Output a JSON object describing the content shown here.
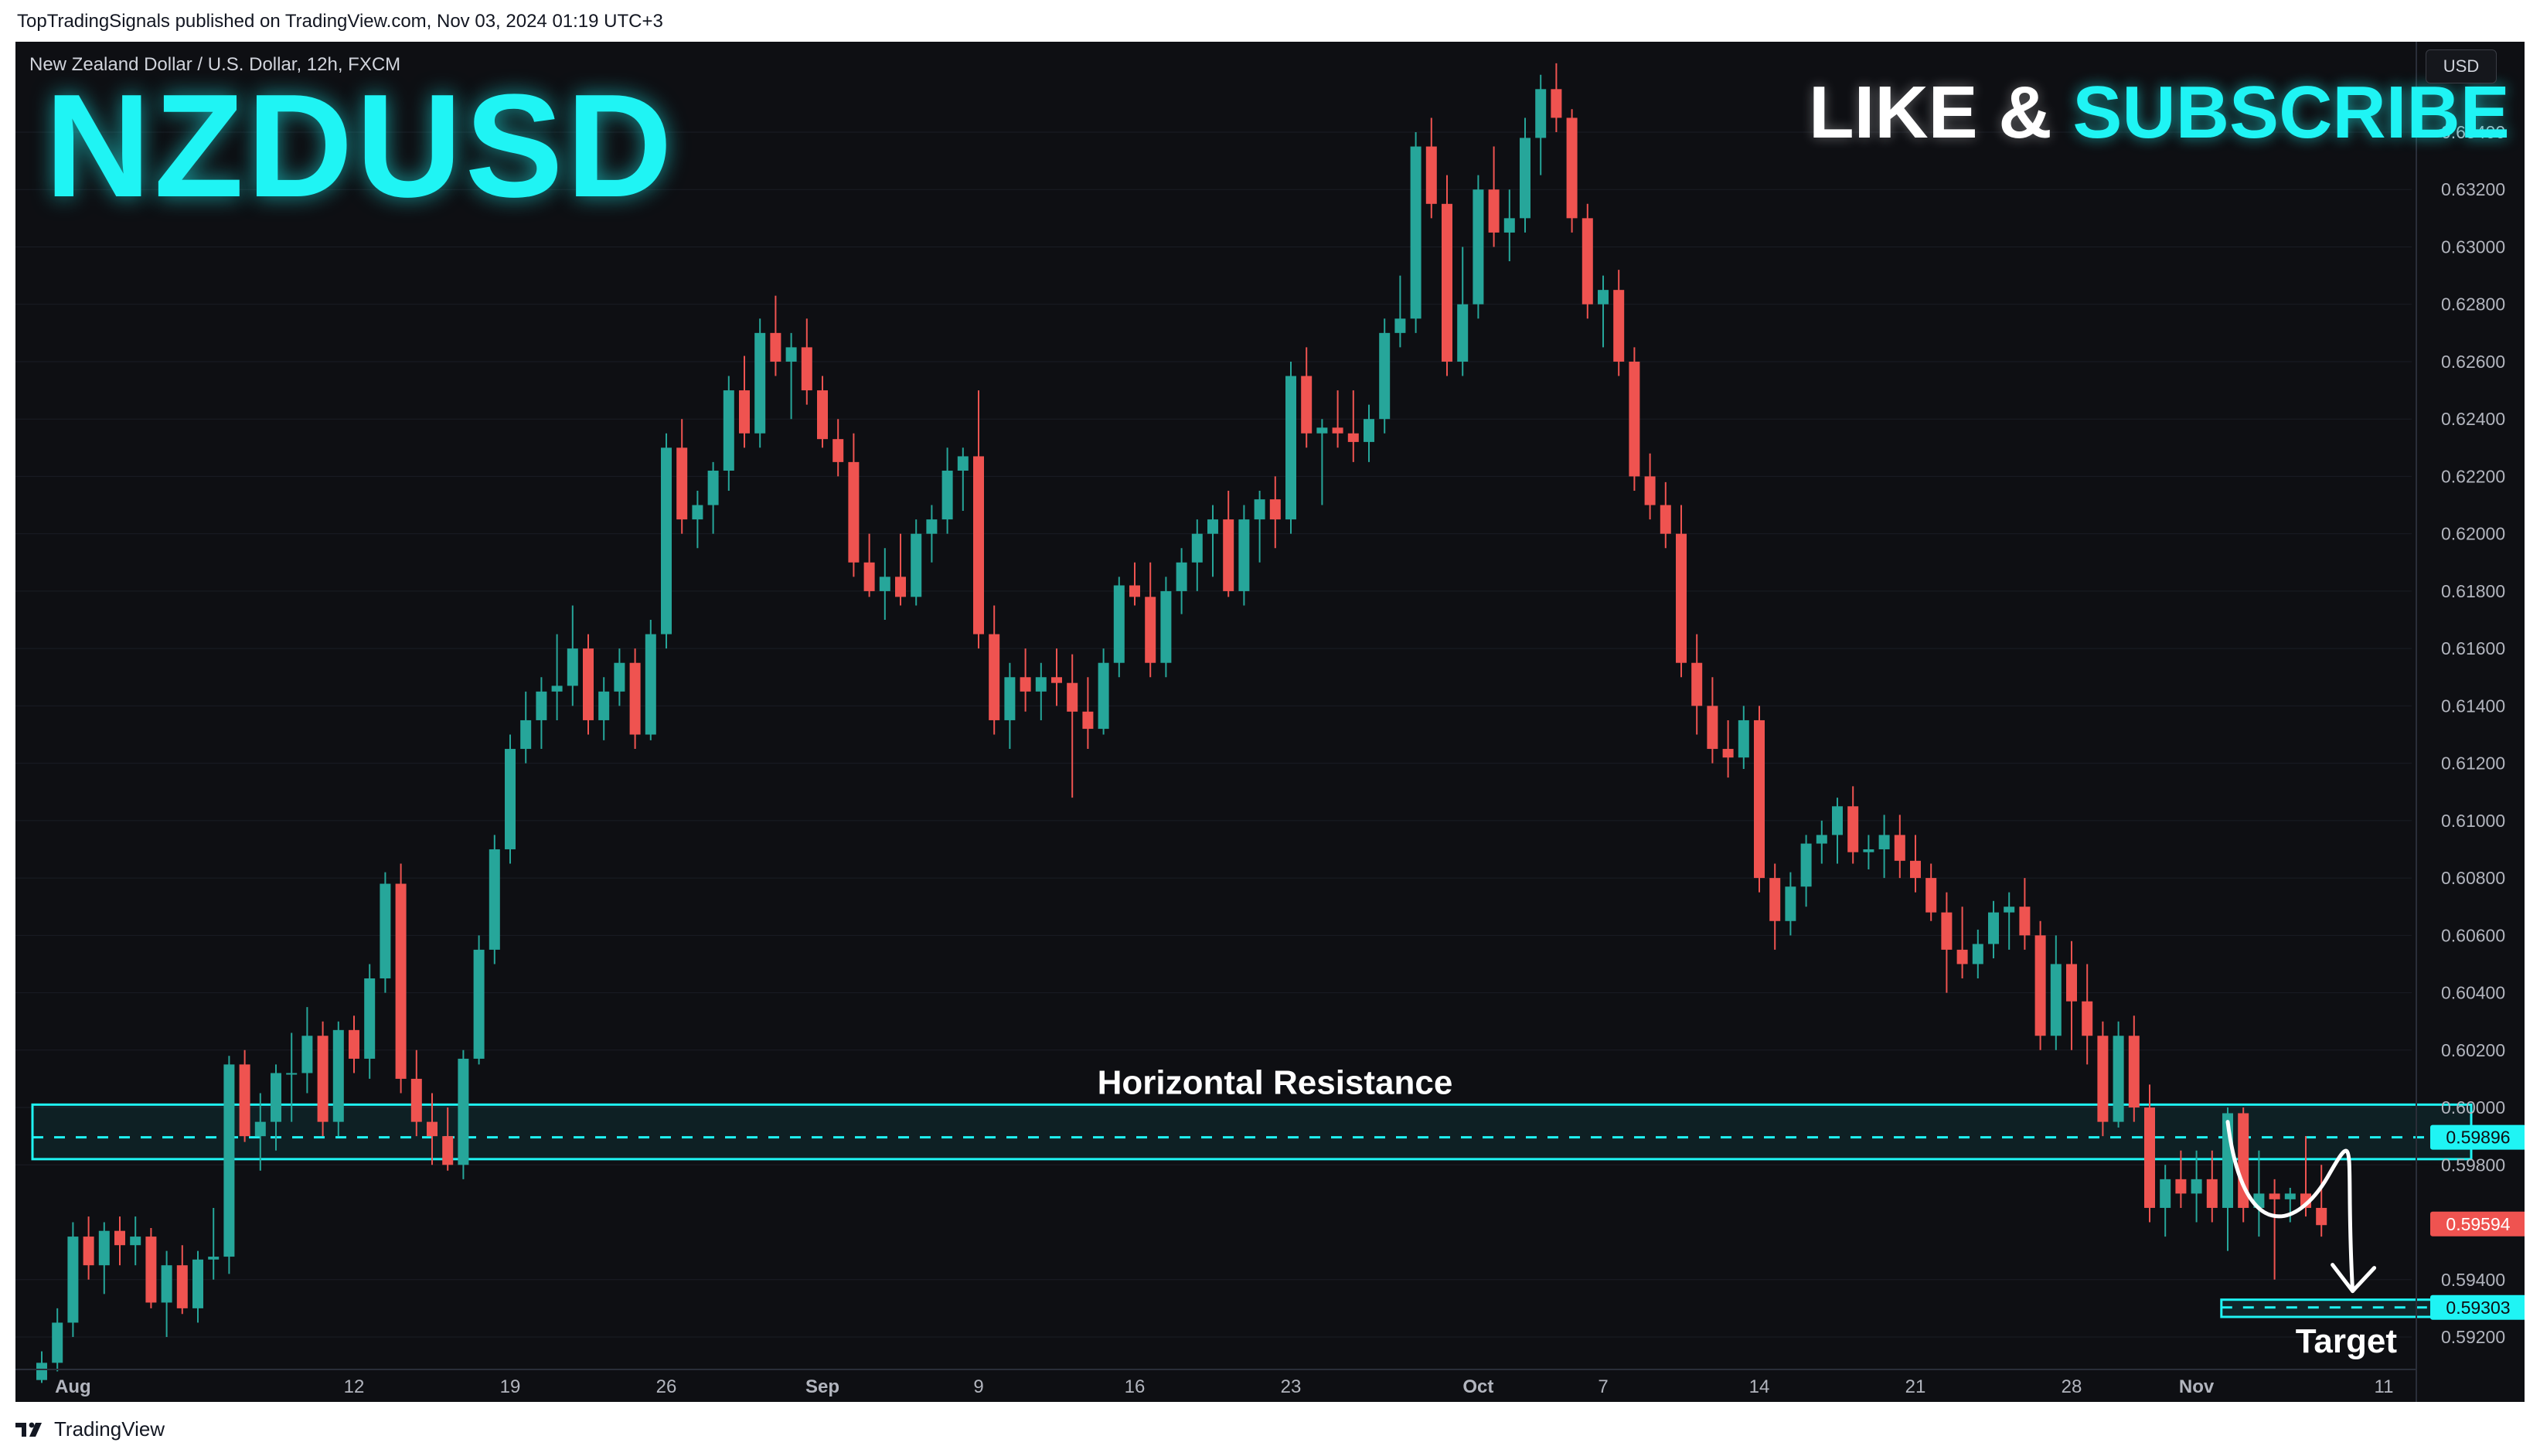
{
  "publish_header": "TopTradingSignals published on TradingView.com, Nov 03, 2024 01:19 UTC+3",
  "chart_header": "New Zealand Dollar / U.S. Dollar, 12h, FXCM",
  "symbol_title": "NZDUSD",
  "promo": {
    "like": "LIKE & ",
    "subscribe": "SUBSCRIBE"
  },
  "currency_button": "USD",
  "footer_brand": "TradingView",
  "colors": {
    "bull": "#26a69a",
    "bear": "#ef5350",
    "accent": "#1ff4f4",
    "background": "#0e0f13"
  },
  "chart_data": {
    "type": "candlestick",
    "interval": "12h",
    "ylim": [
      0.591,
      0.6364
    ],
    "y_ticks": [
      "0.63400",
      "0.63200",
      "0.63000",
      "0.62800",
      "0.62600",
      "0.62400",
      "0.62200",
      "0.62000",
      "0.61800",
      "0.61600",
      "0.61400",
      "0.61200",
      "0.61000",
      "0.60800",
      "0.60600",
      "0.60400",
      "0.60200",
      "0.60000",
      "0.59800",
      "0.59400",
      "0.59200"
    ],
    "x_ticks": [
      {
        "label": "Aug",
        "bar": 2,
        "bold": true
      },
      {
        "label": "12",
        "bar": 20,
        "bold": false
      },
      {
        "label": "19",
        "bar": 30,
        "bold": false
      },
      {
        "label": "26",
        "bar": 40,
        "bold": false
      },
      {
        "label": "Sep",
        "bar": 50,
        "bold": true
      },
      {
        "label": "9",
        "bar": 60,
        "bold": false
      },
      {
        "label": "16",
        "bar": 70,
        "bold": false
      },
      {
        "label": "23",
        "bar": 80,
        "bold": false
      },
      {
        "label": "Oct",
        "bar": 92,
        "bold": true
      },
      {
        "label": "7",
        "bar": 100,
        "bold": false
      },
      {
        "label": "14",
        "bar": 110,
        "bold": false
      },
      {
        "label": "21",
        "bar": 120,
        "bold": false
      },
      {
        "label": "28",
        "bar": 130,
        "bold": false
      },
      {
        "label": "Nov",
        "bar": 138,
        "bold": true
      },
      {
        "label": "11",
        "bar": 150,
        "bold": false
      }
    ],
    "candles": [
      [
        0.5905,
        0.5915,
        0.5904,
        0.5911
      ],
      [
        0.5911,
        0.593,
        0.5908,
        0.5925
      ],
      [
        0.5925,
        0.596,
        0.592,
        0.5955
      ],
      [
        0.5955,
        0.5962,
        0.594,
        0.5945
      ],
      [
        0.5945,
        0.596,
        0.5935,
        0.5957
      ],
      [
        0.5957,
        0.5962,
        0.5945,
        0.5952
      ],
      [
        0.5952,
        0.5962,
        0.5945,
        0.5955
      ],
      [
        0.5955,
        0.5958,
        0.593,
        0.5932
      ],
      [
        0.5932,
        0.595,
        0.592,
        0.5945
      ],
      [
        0.5945,
        0.5952,
        0.5928,
        0.593
      ],
      [
        0.593,
        0.595,
        0.5925,
        0.5947
      ],
      [
        0.5947,
        0.5965,
        0.594,
        0.5948
      ],
      [
        0.5948,
        0.6018,
        0.5942,
        0.6015
      ],
      [
        0.6015,
        0.602,
        0.5988,
        0.599
      ],
      [
        0.599,
        0.6005,
        0.5978,
        0.5995
      ],
      [
        0.5995,
        0.6015,
        0.5985,
        0.6012
      ],
      [
        0.6012,
        0.6026,
        0.5995,
        0.6012
      ],
      [
        0.6012,
        0.6035,
        0.6005,
        0.6025
      ],
      [
        0.6025,
        0.603,
        0.599,
        0.5995
      ],
      [
        0.5995,
        0.603,
        0.599,
        0.6027
      ],
      [
        0.6027,
        0.6032,
        0.6012,
        0.6017
      ],
      [
        0.6017,
        0.605,
        0.601,
        0.6045
      ],
      [
        0.6045,
        0.6082,
        0.604,
        0.6078
      ],
      [
        0.6078,
        0.6085,
        0.6005,
        0.601
      ],
      [
        0.601,
        0.602,
        0.599,
        0.5995
      ],
      [
        0.5995,
        0.6005,
        0.598,
        0.599
      ],
      [
        0.599,
        0.6,
        0.5978,
        0.598
      ],
      [
        0.598,
        0.602,
        0.5975,
        0.6017
      ],
      [
        0.6017,
        0.606,
        0.6015,
        0.6055
      ],
      [
        0.6055,
        0.6095,
        0.605,
        0.609
      ],
      [
        0.609,
        0.613,
        0.6085,
        0.6125
      ],
      [
        0.6125,
        0.6145,
        0.612,
        0.6135
      ],
      [
        0.6135,
        0.615,
        0.6125,
        0.6145
      ],
      [
        0.6145,
        0.6165,
        0.6135,
        0.6147
      ],
      [
        0.6147,
        0.6175,
        0.614,
        0.616
      ],
      [
        0.616,
        0.6165,
        0.613,
        0.6135
      ],
      [
        0.6135,
        0.615,
        0.6128,
        0.6145
      ],
      [
        0.6145,
        0.616,
        0.614,
        0.6155
      ],
      [
        0.6155,
        0.616,
        0.6125,
        0.613
      ],
      [
        0.613,
        0.617,
        0.6128,
        0.6165
      ],
      [
        0.6165,
        0.6235,
        0.616,
        0.623
      ],
      [
        0.623,
        0.624,
        0.62,
        0.6205
      ],
      [
        0.6205,
        0.6215,
        0.6195,
        0.621
      ],
      [
        0.621,
        0.6225,
        0.62,
        0.6222
      ],
      [
        0.6222,
        0.6255,
        0.6215,
        0.625
      ],
      [
        0.625,
        0.6262,
        0.623,
        0.6235
      ],
      [
        0.6235,
        0.6275,
        0.623,
        0.627
      ],
      [
        0.627,
        0.6283,
        0.6255,
        0.626
      ],
      [
        0.626,
        0.627,
        0.624,
        0.6265
      ],
      [
        0.6265,
        0.6275,
        0.6245,
        0.625
      ],
      [
        0.625,
        0.6255,
        0.623,
        0.6233
      ],
      [
        0.6233,
        0.624,
        0.622,
        0.6225
      ],
      [
        0.6225,
        0.6235,
        0.6185,
        0.619
      ],
      [
        0.619,
        0.62,
        0.6178,
        0.618
      ],
      [
        0.618,
        0.6195,
        0.617,
        0.6185
      ],
      [
        0.6185,
        0.62,
        0.6175,
        0.6178
      ],
      [
        0.6178,
        0.6205,
        0.6175,
        0.62
      ],
      [
        0.62,
        0.621,
        0.619,
        0.6205
      ],
      [
        0.6205,
        0.623,
        0.62,
        0.6222
      ],
      [
        0.6222,
        0.623,
        0.6208,
        0.6227
      ],
      [
        0.6227,
        0.625,
        0.616,
        0.6165
      ],
      [
        0.6165,
        0.6175,
        0.613,
        0.6135
      ],
      [
        0.6135,
        0.6155,
        0.6125,
        0.615
      ],
      [
        0.615,
        0.616,
        0.6138,
        0.6145
      ],
      [
        0.6145,
        0.6155,
        0.6135,
        0.615
      ],
      [
        0.615,
        0.616,
        0.614,
        0.6148
      ],
      [
        0.6148,
        0.6158,
        0.6108,
        0.6138
      ],
      [
        0.6138,
        0.615,
        0.6125,
        0.6132
      ],
      [
        0.6132,
        0.616,
        0.613,
        0.6155
      ],
      [
        0.6155,
        0.6185,
        0.615,
        0.6182
      ],
      [
        0.6182,
        0.619,
        0.6175,
        0.6178
      ],
      [
        0.6178,
        0.619,
        0.615,
        0.6155
      ],
      [
        0.6155,
        0.6185,
        0.615,
        0.618
      ],
      [
        0.618,
        0.6195,
        0.6172,
        0.619
      ],
      [
        0.619,
        0.6205,
        0.618,
        0.62
      ],
      [
        0.62,
        0.621,
        0.6185,
        0.6205
      ],
      [
        0.6205,
        0.6215,
        0.6178,
        0.618
      ],
      [
        0.618,
        0.621,
        0.6175,
        0.6205
      ],
      [
        0.6205,
        0.6215,
        0.619,
        0.6212
      ],
      [
        0.6212,
        0.622,
        0.6195,
        0.6205
      ],
      [
        0.6205,
        0.626,
        0.62,
        0.6255
      ],
      [
        0.6255,
        0.6265,
        0.623,
        0.6235
      ],
      [
        0.6235,
        0.624,
        0.621,
        0.6237
      ],
      [
        0.6237,
        0.625,
        0.623,
        0.6235
      ],
      [
        0.6235,
        0.625,
        0.6225,
        0.6232
      ],
      [
        0.6232,
        0.6245,
        0.6225,
        0.624
      ],
      [
        0.624,
        0.6275,
        0.6235,
        0.627
      ],
      [
        0.627,
        0.629,
        0.6265,
        0.6275
      ],
      [
        0.6275,
        0.634,
        0.627,
        0.6335
      ],
      [
        0.6335,
        0.6345,
        0.631,
        0.6315
      ],
      [
        0.6315,
        0.6325,
        0.6255,
        0.626
      ],
      [
        0.626,
        0.63,
        0.6255,
        0.628
      ],
      [
        0.628,
        0.6325,
        0.6275,
        0.632
      ],
      [
        0.632,
        0.6335,
        0.63,
        0.6305
      ],
      [
        0.6305,
        0.632,
        0.6295,
        0.631
      ],
      [
        0.631,
        0.6345,
        0.6305,
        0.6338
      ],
      [
        0.6338,
        0.636,
        0.6325,
        0.6355
      ],
      [
        0.6355,
        0.6364,
        0.634,
        0.6345
      ],
      [
        0.6345,
        0.6348,
        0.6305,
        0.631
      ],
      [
        0.631,
        0.6315,
        0.6275,
        0.628
      ],
      [
        0.628,
        0.629,
        0.6265,
        0.6285
      ],
      [
        0.6285,
        0.6292,
        0.6255,
        0.626
      ],
      [
        0.626,
        0.6265,
        0.6215,
        0.622
      ],
      [
        0.622,
        0.6228,
        0.6205,
        0.621
      ],
      [
        0.621,
        0.6218,
        0.6195,
        0.62
      ],
      [
        0.62,
        0.621,
        0.615,
        0.6155
      ],
      [
        0.6155,
        0.6165,
        0.613,
        0.614
      ],
      [
        0.614,
        0.615,
        0.612,
        0.6125
      ],
      [
        0.6125,
        0.6135,
        0.6115,
        0.6122
      ],
      [
        0.6122,
        0.614,
        0.6118,
        0.6135
      ],
      [
        0.6135,
        0.614,
        0.6075,
        0.608
      ],
      [
        0.608,
        0.6085,
        0.6055,
        0.6065
      ],
      [
        0.6065,
        0.6082,
        0.606,
        0.6077
      ],
      [
        0.6077,
        0.6095,
        0.607,
        0.6092
      ],
      [
        0.6092,
        0.61,
        0.6085,
        0.6095
      ],
      [
        0.6095,
        0.6108,
        0.6085,
        0.6105
      ],
      [
        0.6105,
        0.6112,
        0.6085,
        0.6089
      ],
      [
        0.6089,
        0.6095,
        0.6083,
        0.609
      ],
      [
        0.609,
        0.6102,
        0.608,
        0.6095
      ],
      [
        0.6095,
        0.6102,
        0.608,
        0.6086
      ],
      [
        0.6086,
        0.6095,
        0.6075,
        0.608
      ],
      [
        0.608,
        0.6085,
        0.6065,
        0.6068
      ],
      [
        0.6068,
        0.6075,
        0.604,
        0.6055
      ],
      [
        0.6055,
        0.607,
        0.6045,
        0.605
      ],
      [
        0.605,
        0.6062,
        0.6045,
        0.6057
      ],
      [
        0.6057,
        0.6072,
        0.6052,
        0.6068
      ],
      [
        0.6068,
        0.6075,
        0.6055,
        0.607
      ],
      [
        0.607,
        0.608,
        0.6055,
        0.606
      ],
      [
        0.606,
        0.6065,
        0.602,
        0.6025
      ],
      [
        0.6025,
        0.606,
        0.602,
        0.605
      ],
      [
        0.605,
        0.6058,
        0.602,
        0.6037
      ],
      [
        0.6037,
        0.605,
        0.6015,
        0.6025
      ],
      [
        0.6025,
        0.603,
        0.599,
        0.5995
      ],
      [
        0.5995,
        0.603,
        0.5993,
        0.6025
      ],
      [
        0.6025,
        0.6032,
        0.5995,
        0.6
      ],
      [
        0.6,
        0.6008,
        0.596,
        0.5965
      ],
      [
        0.5965,
        0.598,
        0.5955,
        0.5975
      ],
      [
        0.5975,
        0.5985,
        0.5965,
        0.597
      ],
      [
        0.597,
        0.5985,
        0.596,
        0.5975
      ],
      [
        0.5975,
        0.5985,
        0.596,
        0.5965
      ],
      [
        0.5965,
        0.6,
        0.595,
        0.5998
      ],
      [
        0.5998,
        0.6,
        0.596,
        0.5965
      ],
      [
        0.5965,
        0.5985,
        0.5955,
        0.597
      ],
      [
        0.597,
        0.5975,
        0.594,
        0.5968
      ],
      [
        0.5968,
        0.5972,
        0.596,
        0.597
      ],
      [
        0.597,
        0.599,
        0.5962,
        0.5965
      ],
      [
        0.5965,
        0.598,
        0.5955,
        0.5959
      ]
    ],
    "resistance_zone": {
      "label": "Horizontal Resistance",
      "top": 0.6001,
      "bottom": 0.5982,
      "level": 0.59896,
      "start_bar": 0,
      "end_bar": 155
    },
    "target_zone": {
      "label": "Target",
      "top": 0.5933,
      "bottom": 0.5927,
      "level": 0.59303,
      "start_bar": 139,
      "end_bar": 155
    },
    "price_labels": [
      {
        "value": 0.59896,
        "text": "0.59896",
        "kind": "level"
      },
      {
        "value": 0.59594,
        "text": "0.59594",
        "kind": "last"
      },
      {
        "value": 0.59303,
        "text": "0.59303",
        "kind": "level"
      }
    ],
    "projection_arrow": {
      "from_bar": 140,
      "from_price": 0.5995,
      "to_bar": 148,
      "to_price": 0.5936
    }
  }
}
